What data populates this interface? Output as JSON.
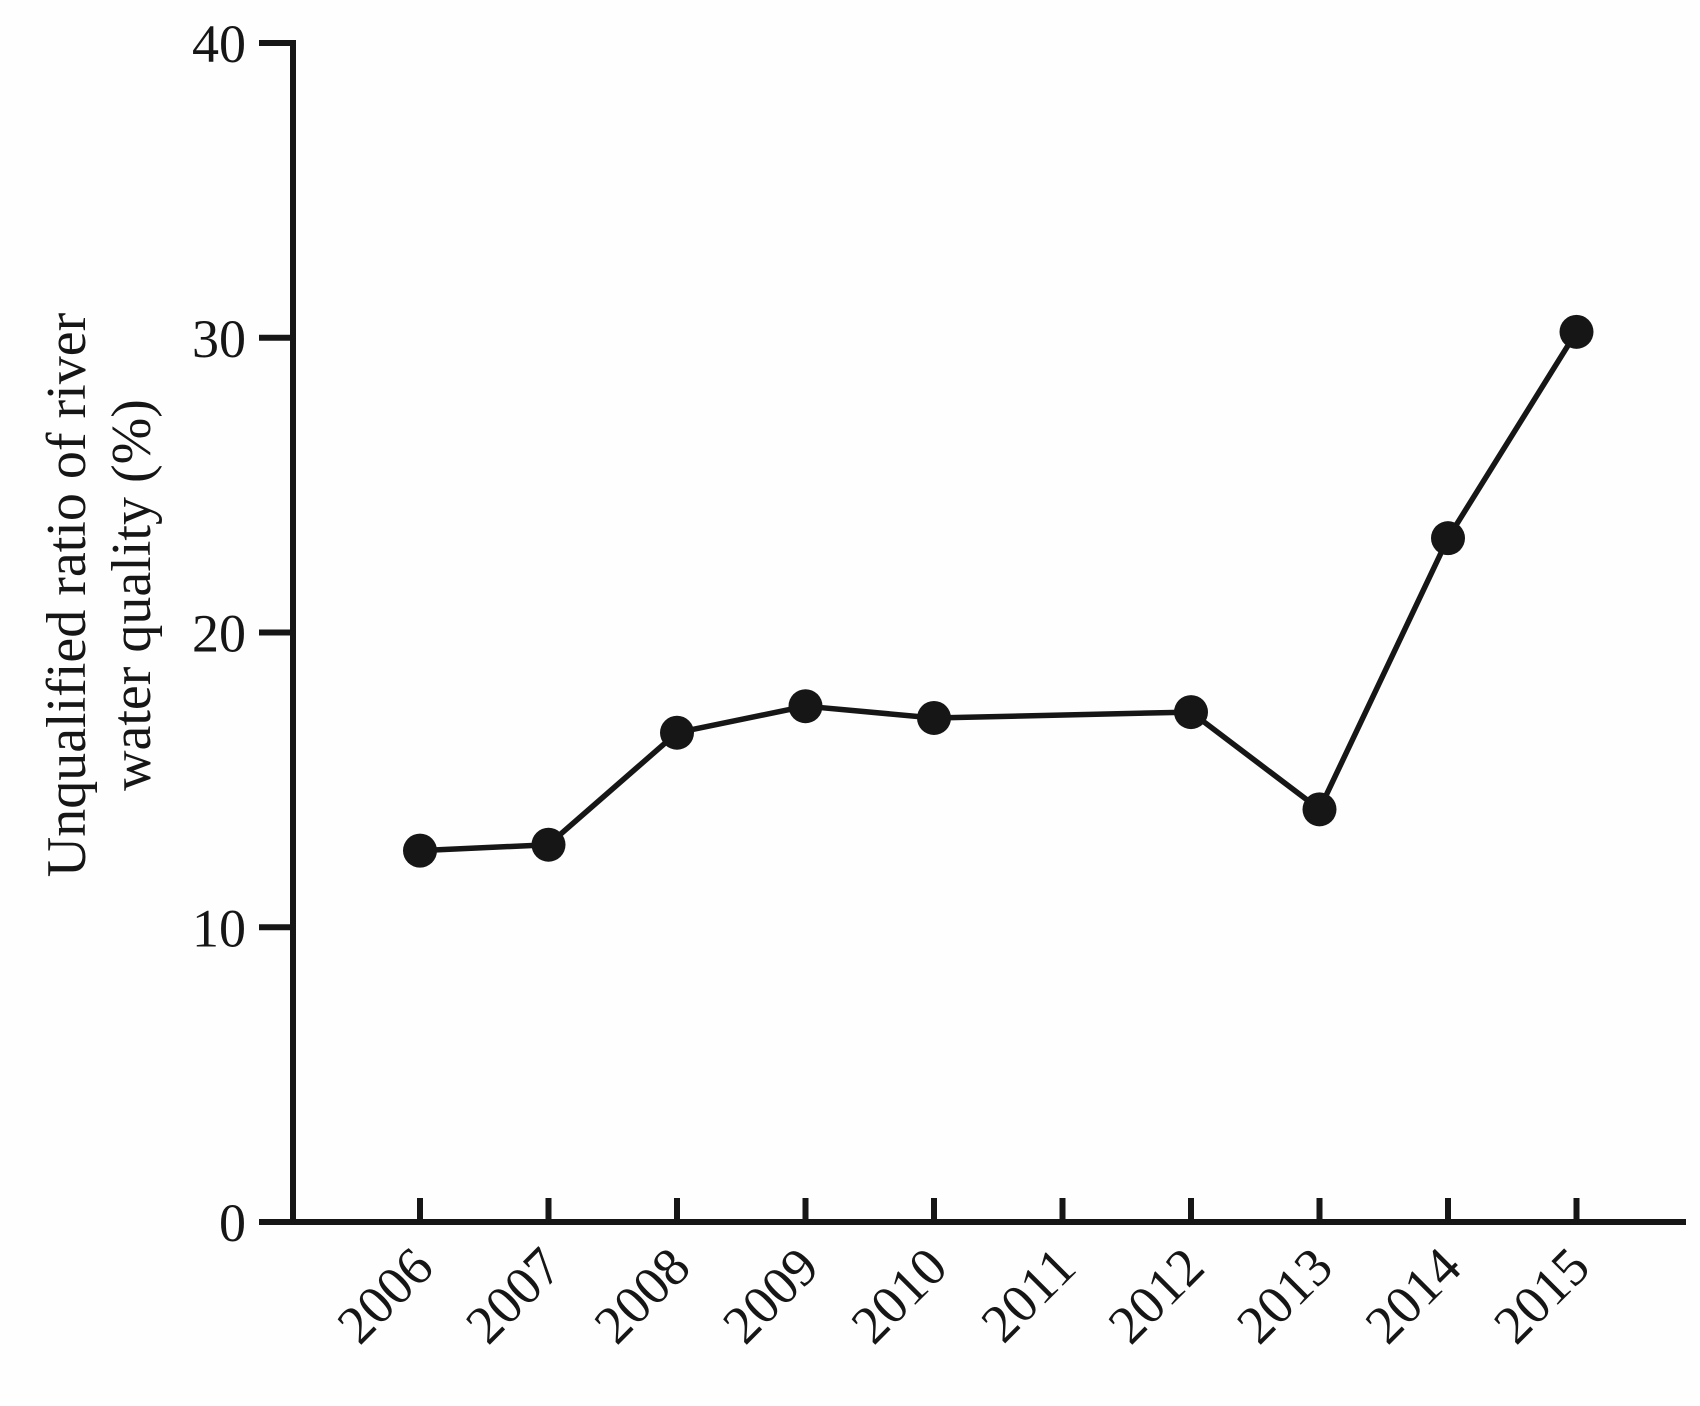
{
  "figure": {
    "background_color": "#fefefe",
    "ink_color": "#161616"
  },
  "chart_data": {
    "type": "line",
    "title": "",
    "xlabel": "",
    "ylabel": "Unqualified ratio of river water quality (%)",
    "ylabel_lines": [
      "Unqualified ratio of river",
      "water quality (%)"
    ],
    "x": [
      2006,
      2007,
      2008,
      2009,
      2010,
      2011,
      2012,
      2013,
      2014,
      2015
    ],
    "series": [
      {
        "name": "Unqualified ratio",
        "values": [
          12.6,
          12.8,
          16.6,
          17.5,
          17.1,
          null,
          17.3,
          14.0,
          23.2,
          30.2
        ]
      }
    ],
    "ylim": [
      0,
      40
    ],
    "yticks": [
      0,
      10,
      20,
      30,
      40
    ],
    "xtick_label_rotation_deg": 45,
    "marker": "filled-circle",
    "line_color": "#161616",
    "marker_color": "#161616",
    "grid": false,
    "legend": null,
    "notes": "No marker at 2011; line runs straight from 2010 to 2012"
  }
}
